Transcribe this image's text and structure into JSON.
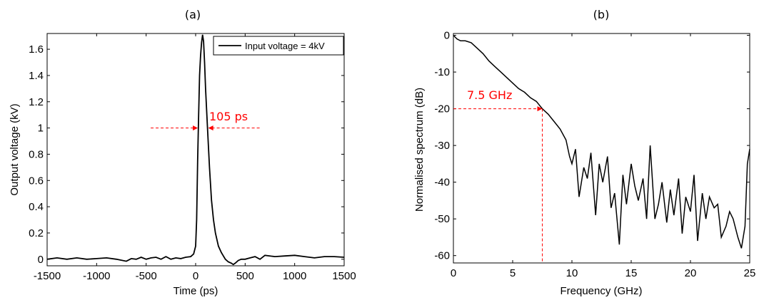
{
  "chart_data": [
    {
      "panel": "(a)",
      "type": "line",
      "xlabel": "Time (ps)",
      "ylabel": "Output voltage (kV)",
      "xlim": [
        -1500,
        1500
      ],
      "ylim": [
        -0.05,
        1.72
      ],
      "xticks": [
        -1500,
        -1000,
        -500,
        0,
        500,
        1000,
        1500
      ],
      "yticks": [
        0,
        0.2,
        0.4,
        0.6,
        0.8,
        1,
        1.2,
        1.4,
        1.6
      ],
      "legend": {
        "label": "Input voltage = 4kV",
        "position": "top-right"
      },
      "grid": false,
      "annotation": {
        "text": "105 ps",
        "y": 1.0,
        "x_left": 22,
        "x_right": 127
      },
      "series": [
        {
          "color": "#000000",
          "x": [
            -1500,
            -1400,
            -1300,
            -1200,
            -1100,
            -1000,
            -900,
            -800,
            -700,
            -650,
            -600,
            -550,
            -500,
            -450,
            -400,
            -350,
            -300,
            -250,
            -200,
            -150,
            -100,
            -50,
            -20,
            0,
            10,
            20,
            30,
            40,
            50,
            60,
            70,
            80,
            90,
            100,
            120,
            140,
            160,
            180,
            200,
            230,
            260,
            300,
            330,
            360,
            380,
            400,
            430,
            460,
            500,
            550,
            600,
            650,
            700,
            800,
            900,
            1000,
            1100,
            1200,
            1300,
            1400,
            1500
          ],
          "y": [
            0.0,
            0.01,
            0.0,
            0.01,
            0.0,
            0.005,
            0.01,
            0.0,
            -0.015,
            0.005,
            0.0,
            0.015,
            0.0,
            0.01,
            0.015,
            0.0,
            0.02,
            0.0,
            0.01,
            0.005,
            0.015,
            0.02,
            0.04,
            0.1,
            0.3,
            0.75,
            1.1,
            1.4,
            1.55,
            1.65,
            1.71,
            1.66,
            1.5,
            1.3,
            1.0,
            0.7,
            0.45,
            0.3,
            0.2,
            0.1,
            0.05,
            0.0,
            -0.02,
            -0.03,
            -0.04,
            -0.03,
            -0.01,
            0.0,
            0.0,
            0.01,
            0.02,
            0.0,
            0.03,
            0.02,
            0.025,
            0.03,
            0.02,
            0.01,
            0.02,
            0.02,
            0.015
          ]
        }
      ]
    },
    {
      "panel": "(b)",
      "type": "line",
      "xlabel": "Frequency (GHz)",
      "ylabel": "Normalised spectrum (dB)",
      "xlim": [
        0,
        25
      ],
      "ylim": [
        -62,
        0.5
      ],
      "xticks": [
        0,
        5,
        10,
        15,
        20,
        25
      ],
      "yticks": [
        0,
        -10,
        -20,
        -30,
        -40,
        -50,
        -60
      ],
      "grid": false,
      "annotation": {
        "text": "7.5 GHz",
        "x": 7.5,
        "y": -20
      },
      "series": [
        {
          "color": "#000000",
          "x": [
            0,
            0.3,
            0.6,
            1,
            1.5,
            2,
            2.5,
            3,
            3.5,
            4,
            4.5,
            5,
            5.5,
            6,
            6.5,
            7,
            7.5,
            8,
            8.5,
            9,
            9.5,
            9.8,
            10,
            10.3,
            10.6,
            11,
            11.3,
            11.6,
            12,
            12.3,
            12.6,
            13,
            13.3,
            13.6,
            14,
            14.3,
            14.6,
            15,
            15.3,
            15.6,
            16,
            16.3,
            16.6,
            17,
            17.3,
            17.6,
            18,
            18.3,
            18.6,
            19,
            19.3,
            19.6,
            20,
            20.3,
            20.6,
            21,
            21.3,
            21.6,
            22,
            22.3,
            22.6,
            23,
            23.3,
            23.6,
            24,
            24.3,
            24.6,
            24.8,
            25
          ],
          "y": [
            0,
            -1,
            -1.5,
            -1.5,
            -2,
            -3.5,
            -5,
            -7,
            -8.5,
            -10,
            -11.5,
            -13,
            -14.5,
            -15.5,
            -17,
            -18,
            -20,
            -21.5,
            -23.5,
            -25.5,
            -28.5,
            -33,
            -35,
            -31,
            -44,
            -36,
            -39,
            -32,
            -49,
            -35,
            -40,
            -33,
            -47,
            -43,
            -57,
            -38,
            -46,
            -35,
            -41,
            -45,
            -39,
            -50,
            -30,
            -50,
            -46,
            -40,
            -51,
            -42,
            -49,
            -39,
            -54,
            -44,
            -48,
            -38,
            -56,
            -43,
            -50,
            -44,
            -47,
            -46,
            -55,
            -52,
            -48,
            -50,
            -55,
            -58,
            -52,
            -35,
            -31
          ]
        }
      ]
    }
  ]
}
